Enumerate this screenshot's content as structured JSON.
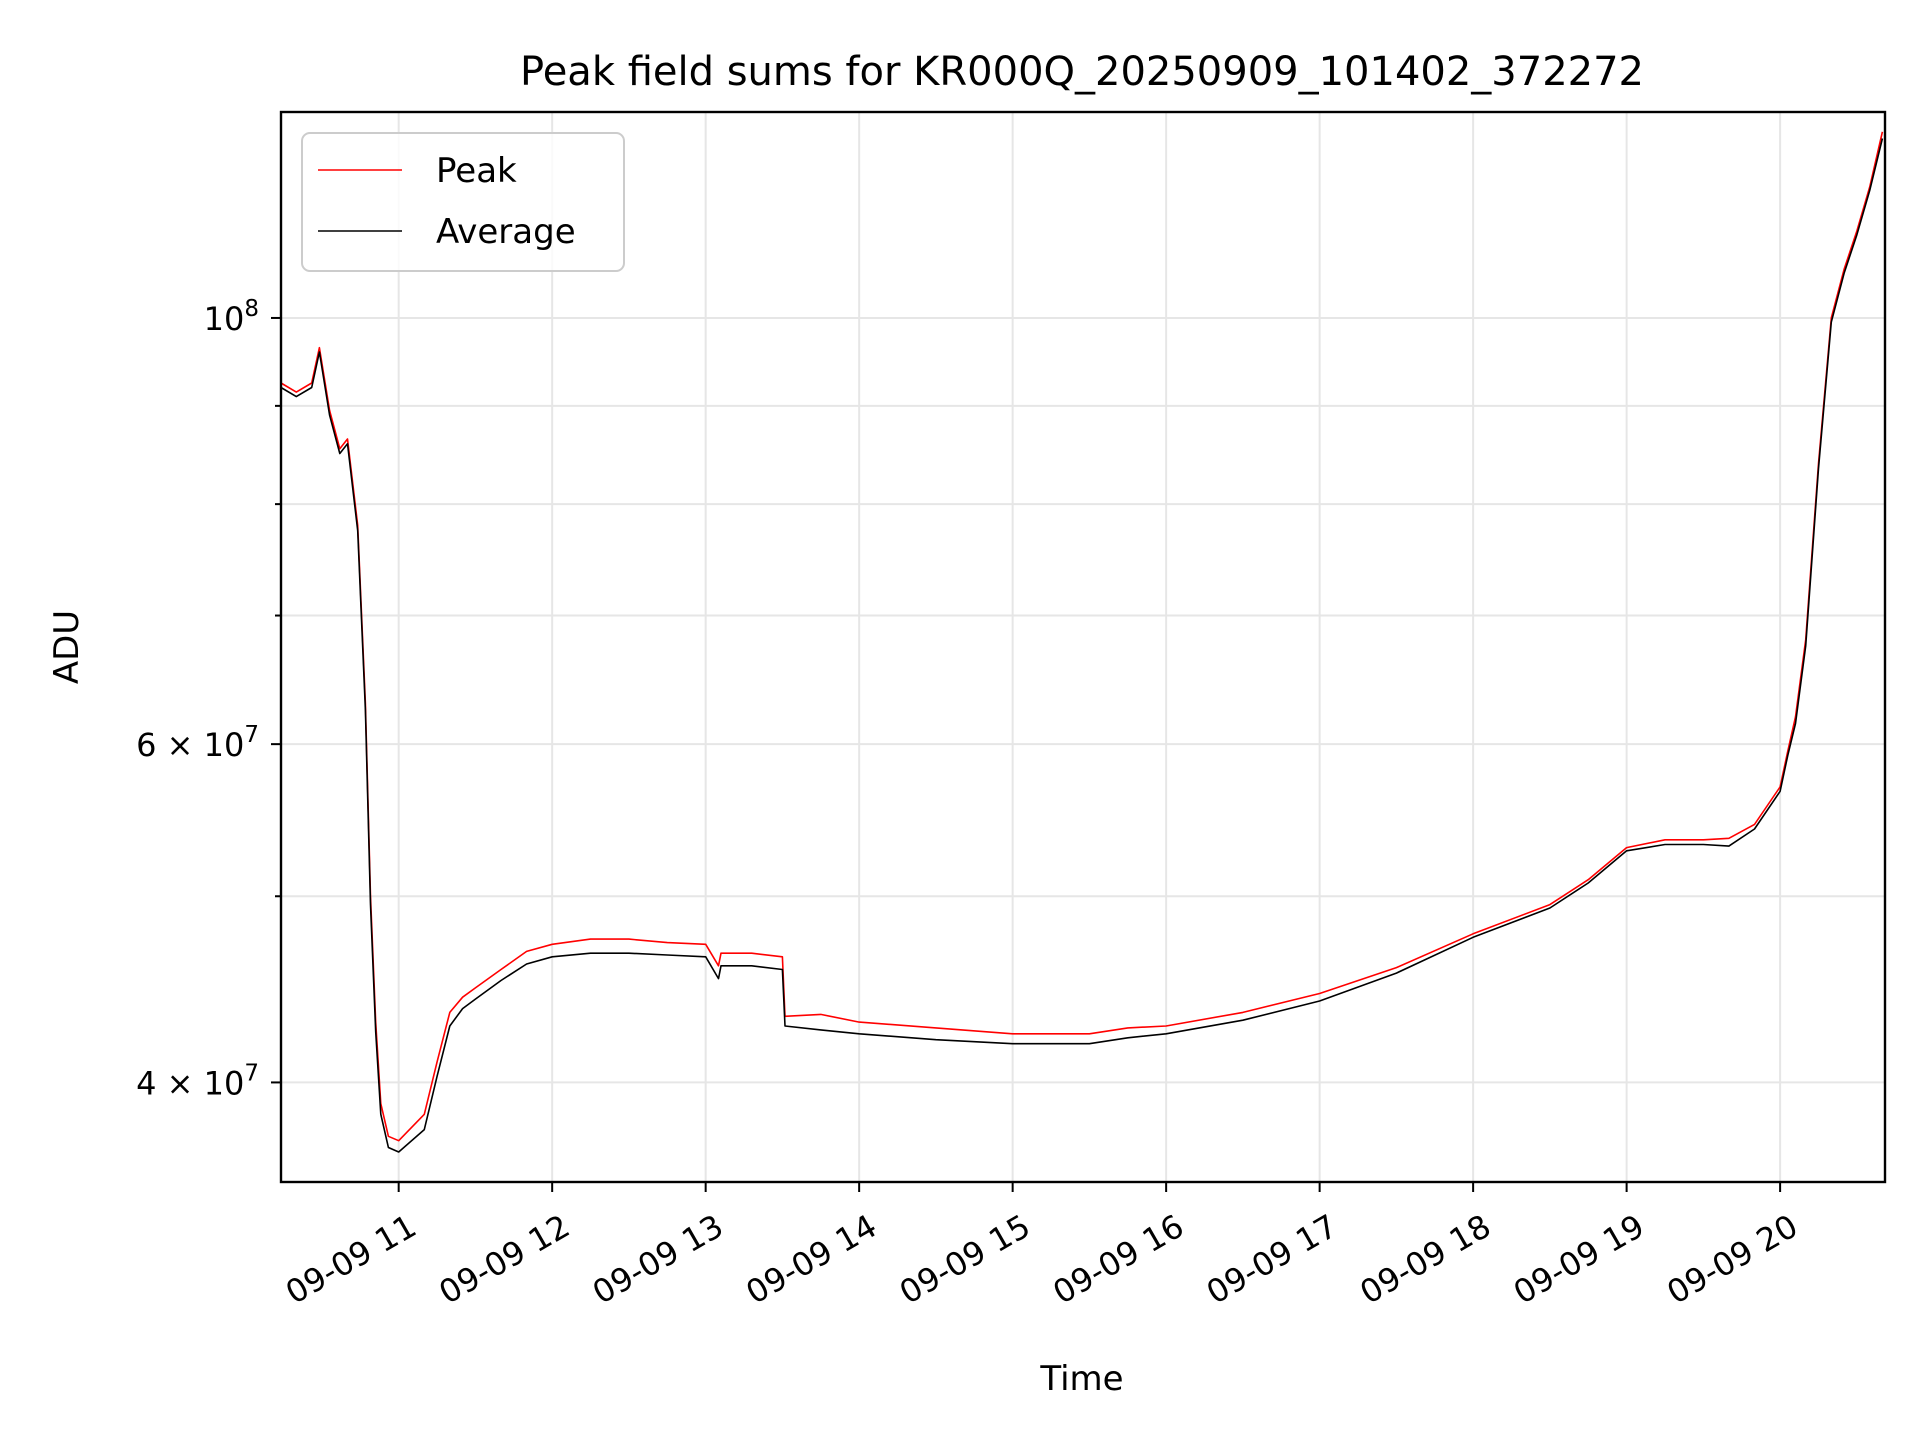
{
  "chart_data": {
    "type": "line",
    "title": "Peak field sums for KR000Q_20250909_101402_372272",
    "xlabel": "Time",
    "ylabel": "ADU",
    "yscale": "log",
    "xlim": [
      "2025-09-09 10:14",
      "2025-09-09 20:41"
    ],
    "ylim": [
      35500000,
      128000000
    ],
    "grid": true,
    "legend": {
      "position": "top-left"
    },
    "x_ticks": [
      {
        "t": "2025-09-09 11:00",
        "label": "09-09 11"
      },
      {
        "t": "2025-09-09 12:00",
        "label": "09-09 12"
      },
      {
        "t": "2025-09-09 13:00",
        "label": "09-09 13"
      },
      {
        "t": "2025-09-09 14:00",
        "label": "09-09 14"
      },
      {
        "t": "2025-09-09 15:00",
        "label": "09-09 15"
      },
      {
        "t": "2025-09-09 16:00",
        "label": "09-09 16"
      },
      {
        "t": "2025-09-09 17:00",
        "label": "09-09 17"
      },
      {
        "t": "2025-09-09 18:00",
        "label": "09-09 18"
      },
      {
        "t": "2025-09-09 19:00",
        "label": "09-09 19"
      },
      {
        "t": "2025-09-09 20:00",
        "label": "09-09 20"
      }
    ],
    "y_major_ticks": [
      {
        "value": 40000000,
        "base": "4 × 10",
        "exp": "7"
      },
      {
        "value": 60000000,
        "base": "6 × 10",
        "exp": "7"
      },
      {
        "value": 100000000,
        "base": "10",
        "exp": "8"
      }
    ],
    "y_minor_ticks": [
      50000000,
      70000000,
      80000000,
      90000000
    ],
    "series": [
      {
        "name": "Peak",
        "color": "#ff0000",
        "x": [
          "2025-09-09 10:14",
          "2025-09-09 10:20",
          "2025-09-09 10:26",
          "2025-09-09 10:29",
          "2025-09-09 10:33",
          "2025-09-09 10:37",
          "2025-09-09 10:40",
          "2025-09-09 10:44",
          "2025-09-09 10:47",
          "2025-09-09 10:49",
          "2025-09-09 10:51",
          "2025-09-09 10:53",
          "2025-09-09 10:56",
          "2025-09-09 11:00",
          "2025-09-09 11:10",
          "2025-09-09 11:15",
          "2025-09-09 11:20",
          "2025-09-09 11:25",
          "2025-09-09 11:30",
          "2025-09-09 11:40",
          "2025-09-09 11:50",
          "2025-09-09 12:00",
          "2025-09-09 12:15",
          "2025-09-09 12:30",
          "2025-09-09 12:45",
          "2025-09-09 13:00",
          "2025-09-09 13:05",
          "2025-09-09 13:06",
          "2025-09-09 13:15",
          "2025-09-09 13:18",
          "2025-09-09 13:30",
          "2025-09-09 13:31",
          "2025-09-09 13:45",
          "2025-09-09 14:00",
          "2025-09-09 14:30",
          "2025-09-09 15:00",
          "2025-09-09 15:30",
          "2025-09-09 15:45",
          "2025-09-09 16:00",
          "2025-09-09 16:30",
          "2025-09-09 17:00",
          "2025-09-09 17:30",
          "2025-09-09 18:00",
          "2025-09-09 18:30",
          "2025-09-09 18:45",
          "2025-09-09 19:00",
          "2025-09-09 19:15",
          "2025-09-09 19:30",
          "2025-09-09 19:40",
          "2025-09-09 19:50",
          "2025-09-09 20:00",
          "2025-09-09 20:03",
          "2025-09-09 20:06",
          "2025-09-09 20:10",
          "2025-09-09 20:15",
          "2025-09-09 20:20",
          "2025-09-09 20:25",
          "2025-09-09 20:30",
          "2025-09-09 20:35",
          "2025-09-09 20:40"
        ],
        "y": [
          92500000,
          91500000,
          92500000,
          96500000,
          89500000,
          85500000,
          86500000,
          78000000,
          63000000,
          50000000,
          43000000,
          39000000,
          37500000,
          37300000,
          38500000,
          41000000,
          43500000,
          44300000,
          44800000,
          45800000,
          46800000,
          47200000,
          47500000,
          47500000,
          47300000,
          47200000,
          46000000,
          46700000,
          46700000,
          46700000,
          46500000,
          43300000,
          43400000,
          43000000,
          42700000,
          42400000,
          42400000,
          42700000,
          42800000,
          43500000,
          44500000,
          45900000,
          47800000,
          49500000,
          51000000,
          53000000,
          53500000,
          53500000,
          53600000,
          54500000,
          57000000,
          59500000,
          62000000,
          68000000,
          84000000,
          100000000,
          106000000,
          111000000,
          117000000,
          125000000
        ]
      },
      {
        "name": "Average",
        "color": "#000000",
        "x": [
          "2025-09-09 10:14",
          "2025-09-09 10:20",
          "2025-09-09 10:26",
          "2025-09-09 10:29",
          "2025-09-09 10:33",
          "2025-09-09 10:37",
          "2025-09-09 10:40",
          "2025-09-09 10:44",
          "2025-09-09 10:47",
          "2025-09-09 10:49",
          "2025-09-09 10:51",
          "2025-09-09 10:53",
          "2025-09-09 10:56",
          "2025-09-09 11:00",
          "2025-09-09 11:10",
          "2025-09-09 11:15",
          "2025-09-09 11:20",
          "2025-09-09 11:25",
          "2025-09-09 11:30",
          "2025-09-09 11:40",
          "2025-09-09 11:50",
          "2025-09-09 12:00",
          "2025-09-09 12:15",
          "2025-09-09 12:30",
          "2025-09-09 12:45",
          "2025-09-09 13:00",
          "2025-09-09 13:05",
          "2025-09-09 13:06",
          "2025-09-09 13:15",
          "2025-09-09 13:18",
          "2025-09-09 13:30",
          "2025-09-09 13:31",
          "2025-09-09 13:45",
          "2025-09-09 14:00",
          "2025-09-09 14:30",
          "2025-09-09 15:00",
          "2025-09-09 15:30",
          "2025-09-09 15:45",
          "2025-09-09 16:00",
          "2025-09-09 16:30",
          "2025-09-09 17:00",
          "2025-09-09 17:30",
          "2025-09-09 18:00",
          "2025-09-09 18:30",
          "2025-09-09 18:45",
          "2025-09-09 19:00",
          "2025-09-09 19:15",
          "2025-09-09 19:30",
          "2025-09-09 19:40",
          "2025-09-09 19:50",
          "2025-09-09 20:00",
          "2025-09-09 20:03",
          "2025-09-09 20:06",
          "2025-09-09 20:10",
          "2025-09-09 20:15",
          "2025-09-09 20:20",
          "2025-09-09 20:25",
          "2025-09-09 20:30",
          "2025-09-09 20:35",
          "2025-09-09 20:40"
        ],
        "y": [
          92000000,
          91000000,
          92000000,
          96000000,
          89000000,
          85000000,
          86000000,
          77500000,
          62500000,
          49500000,
          42500000,
          38500000,
          37000000,
          36800000,
          37800000,
          40300000,
          42800000,
          43700000,
          44200000,
          45200000,
          46100000,
          46500000,
          46700000,
          46700000,
          46600000,
          46500000,
          45300000,
          46000000,
          46000000,
          46000000,
          45800000,
          42800000,
          42600000,
          42400000,
          42100000,
          41900000,
          41900000,
          42200000,
          42400000,
          43100000,
          44100000,
          45600000,
          47600000,
          49300000,
          50800000,
          52800000,
          53200000,
          53200000,
          53100000,
          54200000,
          56700000,
          59200000,
          61500000,
          67500000,
          83500000,
          99500000,
          105500000,
          110500000,
          116500000,
          124000000
        ]
      }
    ]
  }
}
